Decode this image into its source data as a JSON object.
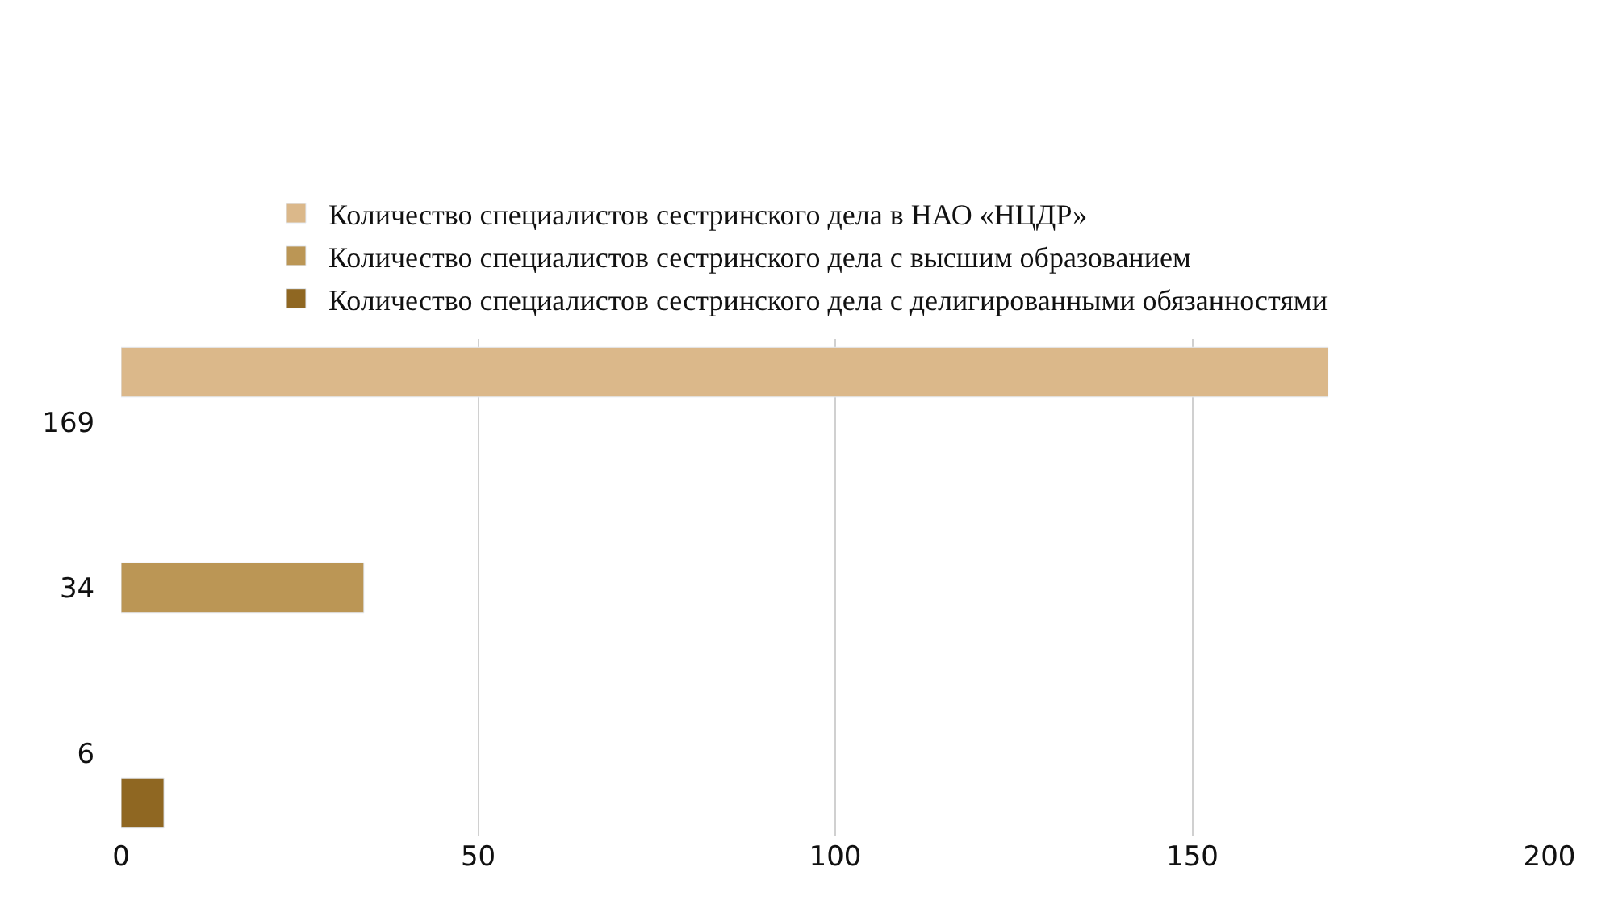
{
  "chart_data": {
    "type": "bar",
    "orientation": "horizontal",
    "categories": [
      "169",
      "34",
      "6"
    ],
    "series": [
      {
        "name": "Количество специалистов сестринского дела в НАО «НЦДР»",
        "color": "#dbb88a",
        "values": [
          169,
          null,
          null
        ]
      },
      {
        "name": "Количество специалистов сестринского дела с высшим образованием",
        "color": "#bb9655",
        "values": [
          null,
          34,
          null
        ]
      },
      {
        "name": "Количество специалистов сестринского дела с делигированными обязанностями",
        "color": "#8f6722",
        "values": [
          null,
          null,
          6
        ]
      }
    ],
    "xlim": [
      0,
      200
    ],
    "xticks": [
      0,
      50,
      100,
      150,
      200
    ],
    "grid": "x",
    "legend": "top"
  }
}
